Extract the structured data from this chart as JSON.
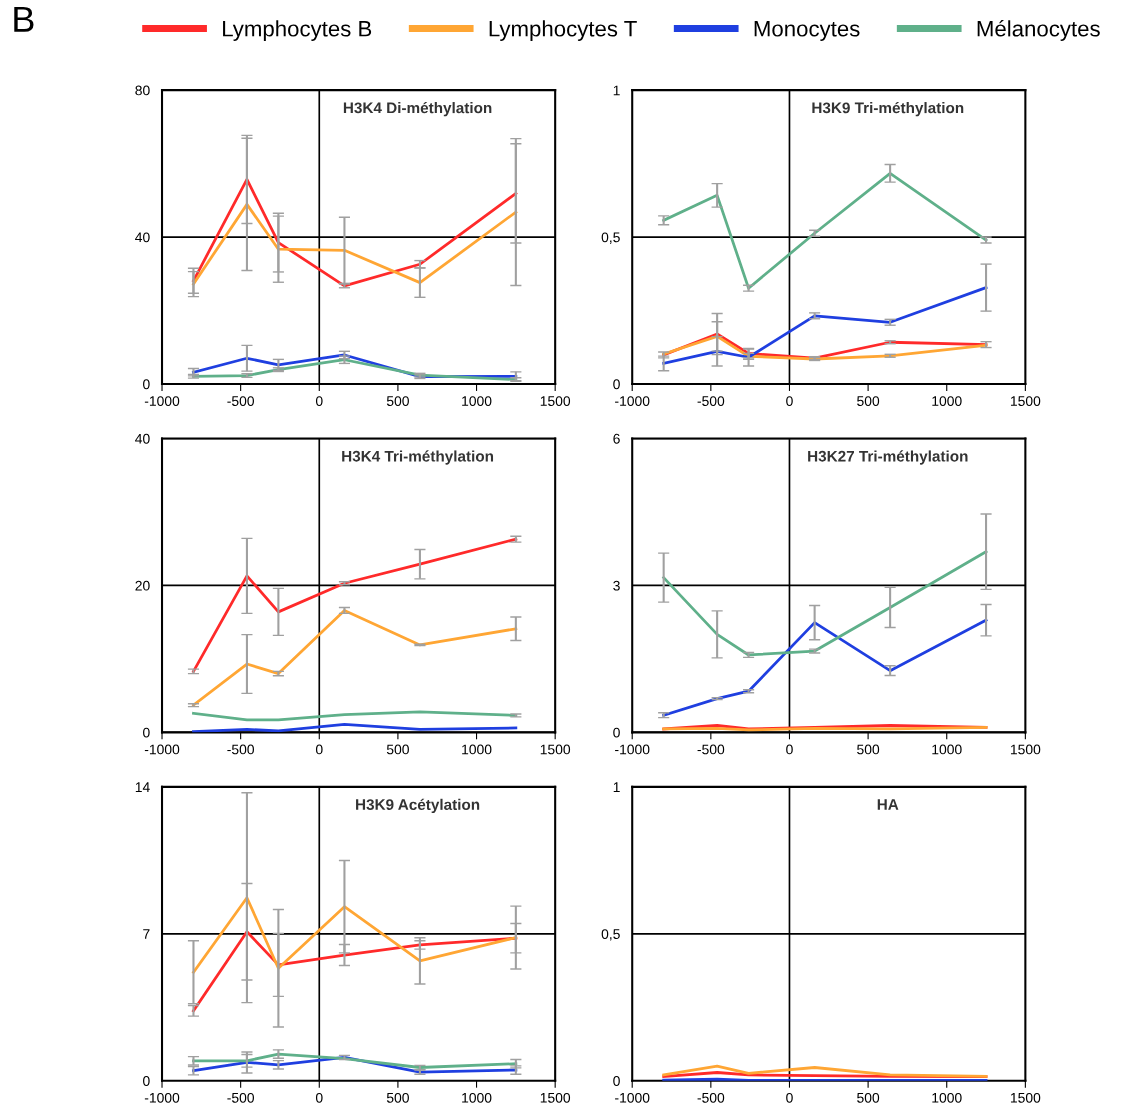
{
  "chart_data": [
    {
      "type": "line",
      "title": "H3K4 Di-méthylation",
      "annotations": [
        "B"
      ],
      "legend": "top",
      "x": [
        -800,
        -460,
        -260,
        160,
        640,
        1250
      ],
      "xlim": [
        -1000,
        1500
      ],
      "xticks": [
        -1000,
        -500,
        0,
        500,
        1000,
        1500
      ],
      "ylim": [
        0,
        80
      ],
      "yticks": [
        0,
        40,
        80
      ],
      "grid": "y",
      "ref_lines": [
        {
          "axis": "x",
          "value": 0,
          "color": "#000000"
        }
      ],
      "series": [
        {
          "name": "Lymphocytes B",
          "color": "#ff2a2a",
          "values": [
            28.1,
            55.7,
            38.5,
            26.7,
            32.6,
            51.9
          ],
          "errors": [
            3.4,
            12,
            8,
            0.5,
            1,
            13.5
          ]
        },
        {
          "name": "Lymphocytes T",
          "color": "#ffa634",
          "values": [
            27.2,
            48.9,
            36.7,
            36.4,
            27.6,
            46.8
          ],
          "errors": [
            3.4,
            18,
            9,
            9,
            4,
            20
          ]
        },
        {
          "name": "Monocytes",
          "color": "#1f3fe0",
          "values": [
            3.2,
            7.0,
            5.2,
            7.9,
            2.0,
            2.1
          ],
          "errors": [
            1,
            3.5,
            1.5,
            1,
            0.5,
            1.2
          ]
        },
        {
          "name": "Mélanocytes",
          "color": "#5fb08a",
          "values": [
            2.1,
            2.3,
            3.9,
            6.6,
            2.4,
            1.2
          ],
          "errors": [
            0.5,
            0.5,
            0.5,
            1,
            0.5,
            0.5
          ]
        }
      ]
    },
    {
      "type": "line",
      "title": "H3K9 Tri-méthylation",
      "x": [
        -800,
        -460,
        -260,
        160,
        640,
        1250
      ],
      "xlim": [
        -1000,
        1500
      ],
      "xticks": [
        -1000,
        -500,
        0,
        500,
        1000,
        1500
      ],
      "ylim": [
        0,
        1
      ],
      "yticks": [
        0,
        {
          "value": 0.5,
          "label": "0,5"
        },
        1
      ],
      "grid": "y",
      "ref_lines": [
        {
          "axis": "x",
          "value": 0,
          "color": "#000000"
        }
      ],
      "series": [
        {
          "name": "Lymphocytes B",
          "color": "#ff2a2a",
          "values": [
            0.099,
            0.17,
            0.104,
            0.088,
            0.142,
            0.134
          ],
          "errors": [
            0.01,
            0.07,
            0.015,
            0.005,
            0.005,
            0.01
          ]
        },
        {
          "name": "Lymphocytes T",
          "color": "#ffa634",
          "values": [
            0.102,
            0.162,
            0.094,
            0.085,
            0.096,
            0.132
          ],
          "errors": [
            null,
            0.05,
            0.01,
            0.005,
            0.005,
            null
          ]
        },
        {
          "name": "Monocytes",
          "color": "#1f3fe0",
          "values": [
            0.07,
            0.111,
            0.091,
            0.232,
            0.21,
            0.328
          ],
          "errors": [
            0.025,
            0.05,
            0.03,
            0.01,
            0.01,
            0.08
          ]
        },
        {
          "name": "Mélanocytes",
          "color": "#5fb08a",
          "values": [
            0.557,
            0.642,
            0.326,
            0.513,
            0.717,
            0.49
          ],
          "errors": [
            0.015,
            0.04,
            0.01,
            0.01,
            0.03,
            0.01
          ]
        }
      ]
    },
    {
      "type": "line",
      "title": "H3K4 Tri-méthylation",
      "x": [
        -800,
        -460,
        -260,
        160,
        640,
        1250
      ],
      "xlim": [
        -1000,
        1500
      ],
      "xticks": [
        -1000,
        -500,
        0,
        500,
        1000,
        1500
      ],
      "ylim": [
        0,
        40
      ],
      "yticks": [
        0,
        20,
        40
      ],
      "grid": "y",
      "ref_lines": [
        {
          "axis": "x",
          "value": 0,
          "color": "#000000"
        }
      ],
      "series": [
        {
          "name": "Lymphocytes B",
          "color": "#ff2a2a",
          "values": [
            8.3,
            21.3,
            16.4,
            20.3,
            22.9,
            26.3
          ],
          "errors": [
            0.3,
            5.1,
            3.2,
            0.2,
            2.0,
            0.4
          ]
        },
        {
          "name": "Lymphocytes T",
          "color": "#ffa634",
          "values": [
            3.7,
            9.3,
            8.0,
            16.6,
            11.9,
            14.1
          ],
          "errors": [
            0.2,
            4,
            0.3,
            0.4,
            0.1,
            1.6
          ]
        },
        {
          "name": "Monocytes",
          "color": "#1f3fe0",
          "values": [
            0.1,
            0.4,
            0.2,
            1.1,
            0.4,
            0.6
          ]
        },
        {
          "name": "Mélanocytes",
          "color": "#5fb08a",
          "values": [
            2.6,
            1.7,
            1.7,
            2.4,
            2.8,
            2.3
          ],
          "errors": [
            null,
            null,
            null,
            null,
            null,
            0.2
          ]
        }
      ]
    },
    {
      "type": "line",
      "title": "H3K27 Tri-méthylation",
      "x": [
        -800,
        -460,
        -260,
        160,
        640,
        1250
      ],
      "xlim": [
        -1000,
        1500
      ],
      "xticks": [
        -1000,
        -500,
        0,
        500,
        1000,
        1500
      ],
      "ylim": [
        0,
        6
      ],
      "yticks": [
        0,
        3,
        6
      ],
      "grid": "y",
      "ref_lines": [
        {
          "axis": "x",
          "value": 0,
          "color": "#000000"
        }
      ],
      "series": [
        {
          "name": "Lymphocytes B",
          "color": "#ff2a2a",
          "values": [
            0.07,
            0.14,
            0.07,
            0.1,
            0.14,
            0.1
          ]
        },
        {
          "name": "Lymphocytes T",
          "color": "#ffa634",
          "values": [
            0.07,
            0.08,
            0.05,
            0.08,
            0.07,
            0.1
          ]
        },
        {
          "name": "Monocytes",
          "color": "#1f3fe0",
          "values": [
            0.35,
            0.69,
            0.84,
            2.24,
            1.26,
            2.29
          ],
          "errors": [
            0.05,
            0.02,
            0.03,
            0.35,
            0.1,
            0.32
          ]
        },
        {
          "name": "Mélanocytes",
          "color": "#5fb08a",
          "values": [
            3.16,
            2.0,
            1.58,
            1.66,
            2.55,
            3.69
          ],
          "errors": [
            0.5,
            0.48,
            0.05,
            0.04,
            0.41,
            0.77
          ]
        }
      ]
    },
    {
      "type": "line",
      "title": "H3K9 Acétylation",
      "x": [
        -800,
        -460,
        -260,
        160,
        640,
        1250
      ],
      "xlim": [
        -1000,
        1500
      ],
      "xticks": [
        -1000,
        -500,
        0,
        500,
        1000,
        1500
      ],
      "ylim": [
        0,
        14
      ],
      "yticks": [
        0,
        7,
        14
      ],
      "grid": "y",
      "ref_lines": [
        {
          "axis": "x",
          "value": 0,
          "color": "#000000"
        }
      ],
      "series": [
        {
          "name": "Lymphocytes B",
          "color": "#ff2a2a",
          "values": [
            3.33,
            7.1,
            5.52,
            5.99,
            6.47,
            6.79
          ],
          "errors": [
            0.25,
            2.3,
            1.5,
            0.5,
            0.2,
            0.7
          ]
        },
        {
          "name": "Lymphocytes T",
          "color": "#ffa634",
          "values": [
            5.17,
            8.72,
            5.36,
            8.29,
            5.71,
            6.82
          ],
          "errors": [
            1.5,
            5,
            2.8,
            2.2,
            1.1,
            1.5
          ]
        },
        {
          "name": "Monocytes",
          "color": "#1f3fe0",
          "values": [
            0.48,
            0.87,
            0.76,
            1.11,
            0.41,
            0.51
          ],
          "errors": [
            0.2,
            0.5,
            0.2,
            0.1,
            0.1,
            0.2
          ]
        },
        {
          "name": "Mélanocytes",
          "color": "#5fb08a",
          "values": [
            0.95,
            0.95,
            1.27,
            1.05,
            0.63,
            0.81
          ],
          "errors": [
            0.2,
            0.3,
            0.2,
            null,
            0.1,
            0.2
          ]
        }
      ]
    },
    {
      "type": "line",
      "title": "HA",
      "x": [
        -800,
        -460,
        -260,
        160,
        640,
        1250
      ],
      "xlim": [
        -1000,
        1500
      ],
      "xticks": [
        -1000,
        -500,
        0,
        500,
        1000,
        1500
      ],
      "ylim": [
        0,
        1
      ],
      "yticks": [
        0,
        {
          "value": 0.5,
          "label": "0,5"
        },
        1
      ],
      "grid": "y",
      "ref_lines": [
        {
          "axis": "x",
          "value": 0,
          "color": "#000000"
        }
      ],
      "series": [
        {
          "name": "Lymphocytes B",
          "color": "#ff2a2a",
          "values": [
            0.014,
            0.028,
            0.02,
            0.017,
            0.015,
            0.014
          ]
        },
        {
          "name": "Lymphocytes T",
          "color": "#ffa634",
          "values": [
            0.02,
            0.05,
            0.025,
            0.045,
            0.02,
            0.015
          ]
        },
        {
          "name": "Monocytes",
          "color": "#1f3fe0",
          "values": [
            0.002,
            0.005,
            0.001,
            0.001,
            0.001,
            0.001
          ]
        }
      ]
    }
  ]
}
